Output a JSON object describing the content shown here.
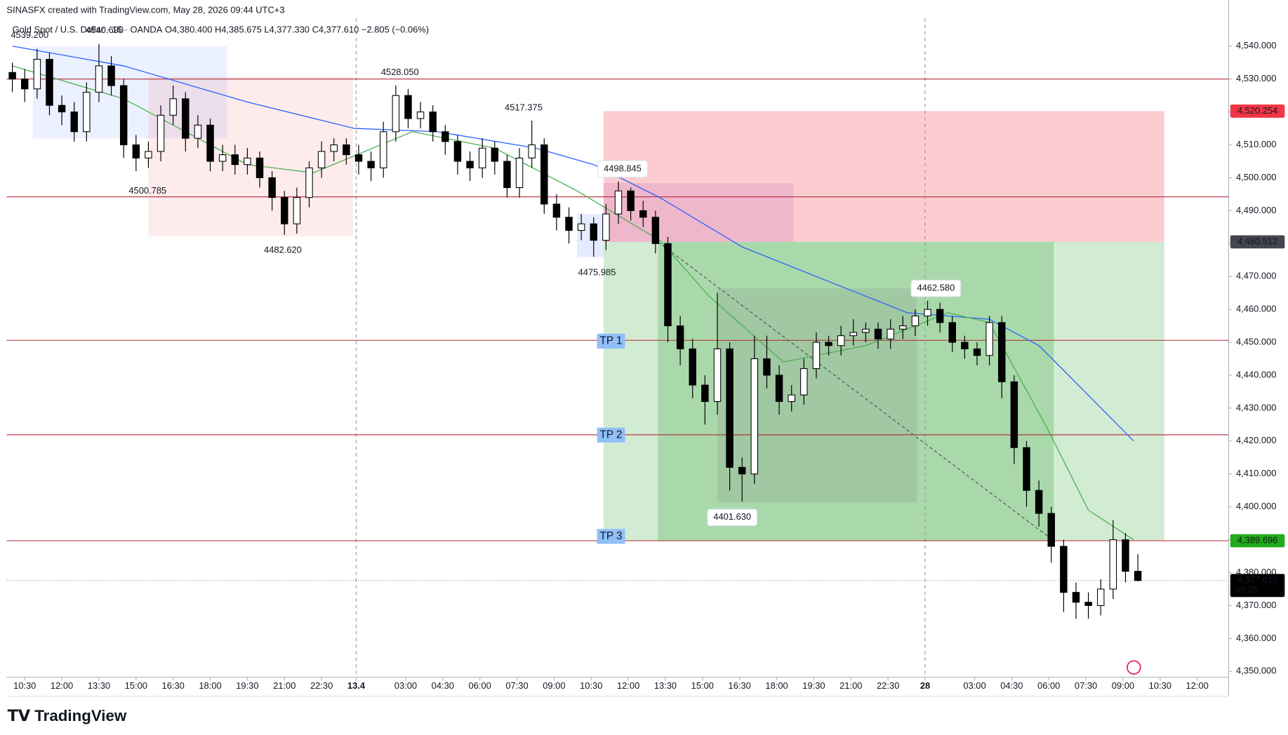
{
  "chart_data": {
    "type": "candlestick",
    "title": "SINASFX created with TradingView.com, May 28, 2026 09:44 UTC+3",
    "symbol": "Gold Spot / U.S. Dollar · 15 · OANDA",
    "ohlc_labels": [
      "O",
      "H",
      "L",
      "C"
    ],
    "ohlc_values": [
      "4,380.400",
      "4,385.675",
      "4,377.330",
      "4,377.610"
    ],
    "change": "−2.805 (−0.06%)",
    "footer": "TradingView",
    "up_color": "#ffffff",
    "down_color": "#000000",
    "outline_color": "#000000",
    "x": [
      -0.5,
      0,
      0.5,
      1,
      1.5,
      2,
      2.5,
      3,
      3.5,
      4,
      4.5,
      5,
      5.5,
      6,
      6.5,
      7,
      7.5,
      8,
      8.5,
      9,
      9.5,
      10,
      10.5,
      11,
      11.5,
      12,
      12.5,
      13,
      13.5,
      14,
      14.5,
      15,
      15.5,
      16,
      16.5,
      17,
      17.5,
      18,
      18.5,
      19,
      19.5,
      20,
      20.5,
      21,
      21.5,
      22,
      22.5,
      23,
      23.5,
      24,
      24.5,
      25,
      25.5,
      26,
      26.5,
      27,
      27.5,
      28,
      28.5,
      29,
      29.5,
      30,
      30.5,
      31,
      31.5,
      32,
      32.5,
      33,
      33.5,
      34,
      34.5,
      35,
      35.5,
      36,
      36.5,
      37,
      37.5,
      38,
      38.5,
      39,
      39.5,
      40,
      40.5,
      41,
      41.5,
      42,
      42.5,
      43,
      43.5,
      44,
      44.5,
      45
    ],
    "open": [
      4532,
      4530,
      4527,
      4536,
      4522,
      4520,
      4514,
      4526,
      4534,
      4528,
      4510,
      4506,
      4508,
      4519,
      4524,
      4512,
      4516,
      4505,
      4507,
      4504,
      4506,
      4500,
      4494,
      4486,
      4494,
      4503,
      4508,
      4510,
      4507,
      4505,
      4503,
      4514,
      4525,
      4518,
      4520,
      4514,
      4511,
      4505,
      4503,
      4509,
      4505,
      4497,
      4506,
      4510,
      4492,
      4488,
      4484,
      4486,
      4481,
      4489,
      4496,
      4490,
      4488,
      4480,
      4455,
      4448,
      4437,
      4432,
      4448,
      4412,
      4410,
      4445,
      4440,
      4432,
      4434,
      4442,
      4450,
      4449,
      4452,
      4453,
      4454,
      4451,
      4454,
      4455,
      4458,
      4460,
      4456,
      4450,
      4448,
      4446,
      4456,
      4438,
      4418,
      4405,
      4398,
      4388,
      4374,
      4371,
      4370,
      4375,
      4390,
      4380.4
    ],
    "high": [
      4535,
      4533,
      4539.2,
      4538,
      4525,
      4523,
      4529,
      4540.69,
      4537,
      4530,
      4513,
      4511,
      4522,
      4528,
      4526,
      4519,
      4518,
      4510,
      4510,
      4509,
      4508,
      4502,
      4496,
      4497,
      4505,
      4511,
      4512,
      4512,
      4510,
      4508,
      4517,
      4528.05,
      4527,
      4523,
      4522,
      4516,
      4513,
      4508,
      4512,
      4511,
      4507,
      4509,
      4517.375,
      4512,
      4495,
      4491,
      4489,
      4488,
      4492,
      4498.845,
      4497,
      4493,
      4490,
      4482,
      4458,
      4451,
      4440,
      4465,
      4450,
      4415,
      4452,
      4452,
      4443,
      4437,
      4445,
      4453,
      4452,
      4455,
      4457,
      4456,
      4456,
      4457,
      4458,
      4460,
      4462.58,
      4462,
      4458,
      4452,
      4450,
      4458,
      4458,
      4440,
      4420,
      4408,
      4400,
      4390,
      4377,
      4374,
      4378,
      4396,
      4392,
      4385.675
    ],
    "low": [
      4526,
      4523,
      4524,
      4519,
      4516,
      4511,
      4511,
      4523,
      4525,
      4506,
      4502,
      4503,
      4505,
      4516,
      4508,
      4509,
      4502,
      4502,
      4501,
      4501,
      4497,
      4490,
      4482.62,
      4483,
      4491,
      4500,
      4505,
      4504,
      4501,
      4499,
      4500,
      4511,
      4515,
      4515,
      4511,
      4507,
      4501,
      4499,
      4500,
      4501,
      4494,
      4494,
      4503,
      4489,
      4484,
      4480,
      4481,
      4475.985,
      4478,
      4486,
      4487,
      4485,
      4477,
      4450,
      4443,
      4433,
      4425,
      4428,
      4405,
      4401.63,
      4407,
      4436,
      4428,
      4429,
      4431,
      4439,
      4446,
      4446,
      4449,
      4450,
      4448,
      4448,
      4451,
      4452,
      4455,
      4453,
      4447,
      4445,
      4443,
      4443,
      4433,
      4413,
      4400,
      4394,
      4383,
      4368,
      4366,
      4366,
      4367,
      4372,
      4377,
      4377.33
    ],
    "close": [
      4530,
      4527,
      4536,
      4522,
      4520,
      4514,
      4526,
      4534,
      4528,
      4510,
      4506,
      4508,
      4519,
      4524,
      4512,
      4516,
      4505,
      4507,
      4504,
      4506,
      4500,
      4494,
      4486,
      4494,
      4503,
      4508,
      4510,
      4507,
      4505,
      4503,
      4514,
      4525,
      4518,
      4520,
      4514,
      4511,
      4505,
      4503,
      4509,
      4505,
      4497,
      4506,
      4510,
      4492,
      4488,
      4484,
      4486,
      4481,
      4489,
      4496,
      4490,
      4488,
      4480,
      4455,
      4448,
      4437,
      4432,
      4448,
      4412,
      4410,
      4445,
      4440,
      4432,
      4434,
      4442,
      4450,
      4449,
      4452,
      4453,
      4454,
      4451,
      4454,
      4455,
      4458,
      4460,
      4456,
      4450,
      4448,
      4446,
      4456,
      4438,
      4418,
      4405,
      4398,
      4388,
      4374,
      4371,
      4370,
      4375,
      4390,
      4380.4,
      4377.61
    ],
    "moving_averages": [
      {
        "color": "#2962ff",
        "x": [
          -0.5,
          4,
          9,
          13.33,
          16.67,
          20.67,
          23,
          25.67,
          29,
          32.33,
          35.67,
          39,
          41,
          42.33,
          44.83
        ],
        "values": [
          4540,
          4534,
          4523,
          4515,
          4514,
          4509,
          4504,
          4494,
          4479,
          4469,
          4459,
          4457,
          4449,
          4439,
          4420
        ]
      },
      {
        "color": "#4caf50",
        "x": [
          -0.5,
          4,
          9,
          11.67,
          15.67,
          19,
          22.33,
          25.67,
          27.67,
          30.67,
          34,
          37.33,
          39,
          41.33,
          43,
          44.83
        ],
        "values": [
          4534,
          4524,
          4504,
          4501.5,
          4514,
          4509,
          4496,
          4481,
          4464,
          4444,
          4449,
          4459,
          4456,
          4424,
          4399,
          4390
        ]
      }
    ],
    "zones": [
      {
        "x": [
          0.33,
          8.17
        ],
        "y": [
          4512,
          4540
        ],
        "color": "rgba(41,98,255,0.09)"
      },
      {
        "x": [
          5,
          13.27
        ],
        "y": [
          4482.2,
          4530.7
        ],
        "color": "rgba(242,54,69,0.1)"
      },
      {
        "x": [
          22.33,
          23.4
        ],
        "y": [
          4475.9,
          4488.9
        ],
        "color": "rgba(41,98,255,0.12)"
      },
      {
        "x": [
          23.4,
          46.07
        ],
        "y": [
          4480.512,
          4520.254
        ],
        "color": "rgba(242,54,69,0.25)"
      },
      {
        "x": [
          23.4,
          46.07
        ],
        "y": [
          4389.696,
          4480.512
        ],
        "color": "rgba(76,175,80,0.25)"
      },
      {
        "x": [
          25.6,
          41.6
        ],
        "y": [
          4389.696,
          4480.512
        ],
        "color": "rgba(76,175,80,0.3)"
      },
      {
        "x": [
          23.4,
          31.07
        ],
        "y": [
          4480.512,
          4498.4
        ],
        "color": "rgba(156,39,176,0.13)"
      },
      {
        "x": [
          28,
          36.07
        ],
        "y": [
          4401.3,
          4466.4
        ],
        "color": "rgba(120,120,120,0.18)"
      }
    ],
    "trend_line": {
      "x": [
        25.6,
        41.6
      ],
      "y": [
        4480.512,
        4389.696
      ],
      "color": "#555555"
    },
    "levels": {
      "values": [
        4530,
        4494.2,
        4450.6,
        4421.9,
        4389.696
      ],
      "color": "#b22833"
    },
    "tp_labels": [
      "TP 1",
      "TP 2",
      "TP 3"
    ],
    "annotations": [
      "4539.200",
      "4540.690",
      "4528.050",
      "4517.375",
      "4500.785",
      "4498.845",
      "4482.620",
      "4475.985",
      "4462.580",
      "4401.630"
    ],
    "price_badges": [
      {
        "value": 4520.254,
        "label": "4,520.254",
        "color": "#f23645"
      },
      {
        "value": 4480.512,
        "label": "4,480.512",
        "color": "#434651"
      },
      {
        "value": 4389.696,
        "label": "4,389.696",
        "color": "#22ab1a"
      },
      {
        "value": 4377.61,
        "label": "4,377.610",
        "color": "#000000",
        "countdown": "00:25"
      }
    ],
    "xlim": [
      -0.733,
      48.67
    ],
    "ylim": [
      4348.2,
      4548.5
    ],
    "xticks": [
      {
        "value": 0,
        "label": "10:30"
      },
      {
        "value": 1.5,
        "label": "12:00"
      },
      {
        "value": 3,
        "label": "13:30"
      },
      {
        "value": 4.5,
        "label": "15:00"
      },
      {
        "value": 6,
        "label": "16:30"
      },
      {
        "value": 7.5,
        "label": "18:00"
      },
      {
        "value": 9,
        "label": "19:30"
      },
      {
        "value": 10.5,
        "label": "21:00"
      },
      {
        "value": 12,
        "label": "22:30"
      },
      13.4,
      {
        "value": 15.4,
        "label": "03:00"
      },
      {
        "value": 16.9,
        "label": "04:30"
      },
      {
        "value": 18.4,
        "label": "06:00"
      },
      {
        "value": 19.9,
        "label": "07:30"
      },
      {
        "value": 21.4,
        "label": "09:00"
      },
      {
        "value": 22.9,
        "label": "10:30"
      },
      {
        "value": 24.4,
        "label": "12:00"
      },
      {
        "value": 25.9,
        "label": "13:30"
      },
      {
        "value": 27.4,
        "label": "15:00"
      },
      {
        "value": 28.9,
        "label": "16:30"
      },
      {
        "value": 30.4,
        "label": "18:00"
      },
      {
        "value": 31.9,
        "label": "19:30"
      },
      {
        "value": 33.4,
        "label": "21:00"
      },
      {
        "value": 34.9,
        "label": "22:30"
      },
      {
        "value": 36.4,
        "label": "28"
      },
      {
        "value": 38.4,
        "label": "03:00"
      },
      {
        "value": 39.9,
        "label": "04:30"
      },
      {
        "value": 41.4,
        "label": "06:00"
      },
      {
        "value": 42.9,
        "label": "07:30"
      },
      {
        "value": 44.4,
        "label": "09:00"
      },
      {
        "value": 45.9,
        "label": "10:30"
      },
      {
        "value": 47.4,
        "label": "12:00"
      }
    ],
    "yticks": [
      {
        "value": 4350,
        "label": "4,350.000"
      },
      {
        "value": 4360,
        "label": "4,360.000"
      },
      {
        "value": 4370,
        "label": "4,370.000"
      },
      {
        "value": 4380,
        "label": "4,380.000"
      },
      {
        "value": 4390,
        "label": "4,390.000"
      },
      {
        "value": 4400,
        "label": "4,400.000"
      },
      {
        "value": 4410,
        "label": "4,410.000"
      },
      {
        "value": 4420,
        "label": "4,420.000"
      },
      {
        "value": 4430,
        "label": "4,430.000"
      },
      {
        "value": 4440,
        "label": "4,440.000"
      },
      {
        "value": 4450,
        "label": "4,450.000"
      },
      {
        "value": 4460,
        "label": "4,460.000"
      },
      {
        "value": 4470,
        "label": "4,470.000"
      },
      {
        "value": 4480,
        "label": "4,480.000"
      },
      {
        "value": 4490,
        "label": "4,490.000"
      },
      {
        "value": 4500,
        "label": "4,500.000"
      },
      {
        "value": 4510,
        "label": "4,510.000"
      },
      {
        "value": 4520,
        "label": "4,520.000"
      },
      {
        "value": 4530,
        "label": "4,530.000"
      },
      {
        "value": 4540,
        "label": "4,540.000"
      }
    ]
  }
}
